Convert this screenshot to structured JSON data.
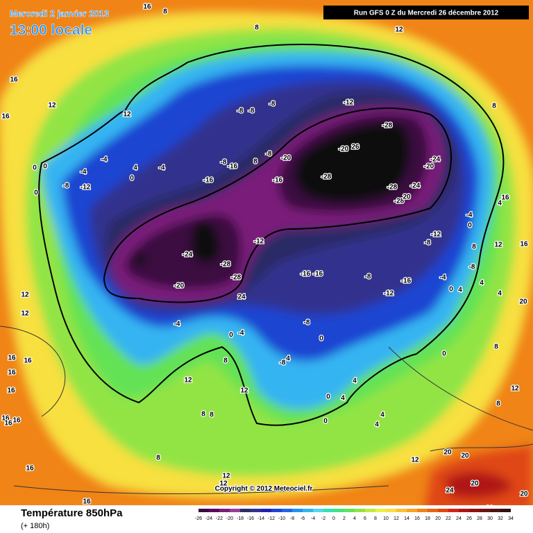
{
  "header": {
    "date": "Mercredi 2 janvier 2013",
    "time": "13:00 locale",
    "run": "Run GFS 0 Z du Mercredi 26 décembre 2012"
  },
  "copyright": "Copyright © 2012 Meteociel.fr",
  "footer": {
    "title": "Température 850hPa",
    "lead": "(+ 180h)"
  },
  "colorbar": {
    "ticks": [
      -26,
      -24,
      -22,
      -20,
      -18,
      -16,
      -14,
      -12,
      -10,
      -8,
      -6,
      -4,
      -2,
      0,
      2,
      4,
      6,
      8,
      10,
      12,
      14,
      16,
      18,
      20,
      22,
      24,
      26,
      28,
      30,
      32,
      34
    ],
    "colors": [
      "#101010",
      "#3a0a40",
      "#5c0a5c",
      "#7a1e7a",
      "#9a3c9a",
      "#2c2c66",
      "#32328e",
      "#1e22b4",
      "#1e44d2",
      "#2264e2",
      "#2292f0",
      "#34b4f2",
      "#56d4f2",
      "#34e2b0",
      "#44e27c",
      "#64e254",
      "#92e444",
      "#c2ea42",
      "#e8f242",
      "#f8e040",
      "#f8c432",
      "#f8a424",
      "#f08414",
      "#e86412",
      "#e04612",
      "#d02414",
      "#b01414",
      "#901212",
      "#701212",
      "#521212",
      "#321010"
    ]
  },
  "contour_labels": [
    "16",
    "8",
    "8",
    "12",
    "16",
    "12",
    "16",
    "12",
    "-8",
    "-8",
    "-8",
    "-12",
    "-28",
    "-20",
    "26",
    "8",
    "-8",
    "-20",
    "-16",
    "8",
    "-8",
    "-16",
    "-16",
    "-28",
    "-28",
    "-24",
    "-24",
    "-20",
    "-28",
    "20",
    "-12",
    "-8",
    "-4",
    "-4",
    "-4",
    "-4",
    "-8",
    "-12",
    "0",
    "4",
    "0",
    "0",
    "0",
    "-24",
    "-28",
    "-28",
    "-20",
    "24",
    "-12",
    "-16",
    "-16",
    "-8",
    "-16",
    "-12",
    "-4",
    "0",
    "4",
    "4",
    "4",
    "12",
    "16",
    "8",
    "-8",
    "20",
    "-4",
    "0",
    "-4",
    "-8",
    "-8",
    "4",
    "0",
    "0",
    "4",
    "4",
    "0",
    "4",
    "4",
    "0",
    "8",
    "8",
    "12",
    "12",
    "12",
    "16",
    "16",
    "16",
    "16",
    "16",
    "16",
    "16",
    "16",
    "16",
    "8",
    "8",
    "8",
    "8",
    "12",
    "12",
    "12",
    "12",
    "12",
    "20",
    "20",
    "20",
    "24",
    "20",
    "16",
    "16",
    "4",
    "0"
  ]
}
